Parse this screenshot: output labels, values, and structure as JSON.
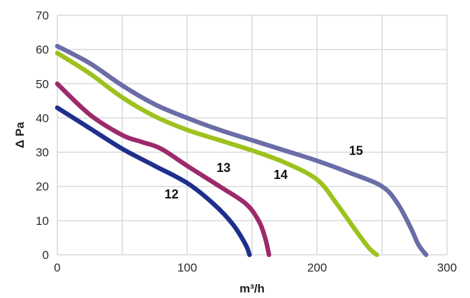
{
  "chart_data": {
    "type": "line",
    "title": "",
    "xlabel": "m³/h",
    "ylabel": "Δ Pa",
    "xlim": [
      0,
      300
    ],
    "ylim": [
      0,
      70
    ],
    "x_ticks": [
      0,
      100,
      200,
      300
    ],
    "y_ticks": [
      0,
      10,
      20,
      30,
      40,
      50,
      60,
      70
    ],
    "x_tick_labels": [
      "0",
      "100",
      "200",
      "300"
    ],
    "y_tick_labels": [
      "0",
      "10",
      "20",
      "30",
      "40",
      "50",
      "60",
      "70"
    ],
    "grid": true,
    "legend": "none",
    "series": [
      {
        "name": "12",
        "color": "#1f2f8c",
        "label_at": [
          88,
          16.5
        ],
        "points": [
          [
            0,
            43
          ],
          [
            25,
            37
          ],
          [
            50,
            31
          ],
          [
            75,
            26
          ],
          [
            100,
            21
          ],
          [
            120,
            15
          ],
          [
            135,
            9
          ],
          [
            145,
            3
          ],
          [
            148,
            0
          ]
        ]
      },
      {
        "name": "13",
        "color": "#9c2a6b",
        "label_at": [
          128,
          24.2
        ],
        "points": [
          [
            0,
            50
          ],
          [
            25,
            41
          ],
          [
            50,
            35
          ],
          [
            65,
            33
          ],
          [
            80,
            31
          ],
          [
            100,
            26
          ],
          [
            125,
            20
          ],
          [
            145,
            15
          ],
          [
            155,
            10
          ],
          [
            160,
            5
          ],
          [
            163,
            0
          ]
        ]
      },
      {
        "name": "14",
        "color": "#9dc21e",
        "label_at": [
          172,
          22.2
        ],
        "points": [
          [
            0,
            59
          ],
          [
            25,
            53
          ],
          [
            50,
            46
          ],
          [
            75,
            40.5
          ],
          [
            100,
            36.5
          ],
          [
            125,
            33.5
          ],
          [
            150,
            30.5
          ],
          [
            175,
            27
          ],
          [
            200,
            22
          ],
          [
            215,
            15
          ],
          [
            230,
            7
          ],
          [
            240,
            2
          ],
          [
            246,
            0
          ]
        ]
      },
      {
        "name": "15",
        "color": "#6a6da6",
        "label_at": [
          230,
          29.2
        ],
        "points": [
          [
            0,
            61
          ],
          [
            25,
            56
          ],
          [
            50,
            49.5
          ],
          [
            75,
            44
          ],
          [
            100,
            40
          ],
          [
            125,
            36.5
          ],
          [
            150,
            33.5
          ],
          [
            175,
            30.5
          ],
          [
            200,
            27.5
          ],
          [
            225,
            24
          ],
          [
            250,
            20
          ],
          [
            262,
            15
          ],
          [
            272,
            8
          ],
          [
            278,
            3
          ],
          [
            284,
            0
          ]
        ]
      }
    ]
  }
}
